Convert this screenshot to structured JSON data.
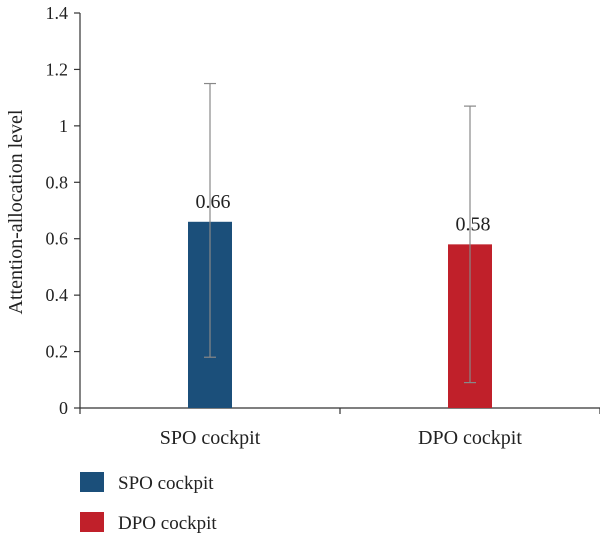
{
  "chart_data": {
    "type": "bar",
    "categories": [
      "SPO cockpit",
      "DPO cockpit"
    ],
    "series": [
      {
        "name": "SPO cockpit",
        "color": "#1b4f7a",
        "values": [
          0.66,
          null
        ]
      },
      {
        "name": "DPO cockpit",
        "color": "#c0202a",
        "values": [
          null,
          0.58
        ]
      }
    ],
    "values": [
      0.66,
      0.58
    ],
    "error_bars": [
      {
        "category": "SPO cockpit",
        "low": 0.18,
        "high": 1.15
      },
      {
        "category": "DPO cockpit",
        "low": 0.09,
        "high": 1.07
      }
    ],
    "data_labels": [
      "0.66",
      "0.58"
    ],
    "title": "",
    "xlabel": "",
    "ylabel": "Attention-allocation level",
    "ylim": [
      0,
      1.4
    ],
    "yticks": [
      "0",
      "0.2",
      "0.4",
      "0.6",
      "0.8",
      "1",
      "1.2",
      "1.4"
    ],
    "grid": false,
    "legend_position": "bottom-left",
    "errorbar_color": "#888888"
  }
}
